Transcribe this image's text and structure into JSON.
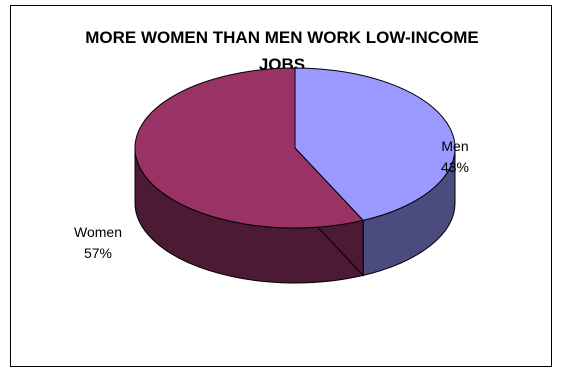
{
  "chart_data": {
    "type": "pie",
    "title": "MORE WOMEN THAN MEN WORK LOW-INCOME JOBS",
    "title_lines": [
      "MORE WOMEN THAN MEN WORK LOW-INCOME",
      "JOBS"
    ],
    "slices": [
      {
        "label": "Men",
        "value_label": "43%",
        "value": 43,
        "color": "#9999FF",
        "side_color": "#4B4B7F"
      },
      {
        "label": "Women",
        "value_label": "57%",
        "value": 57,
        "color": "#993366",
        "side_color": "#4C1A33"
      }
    ]
  }
}
